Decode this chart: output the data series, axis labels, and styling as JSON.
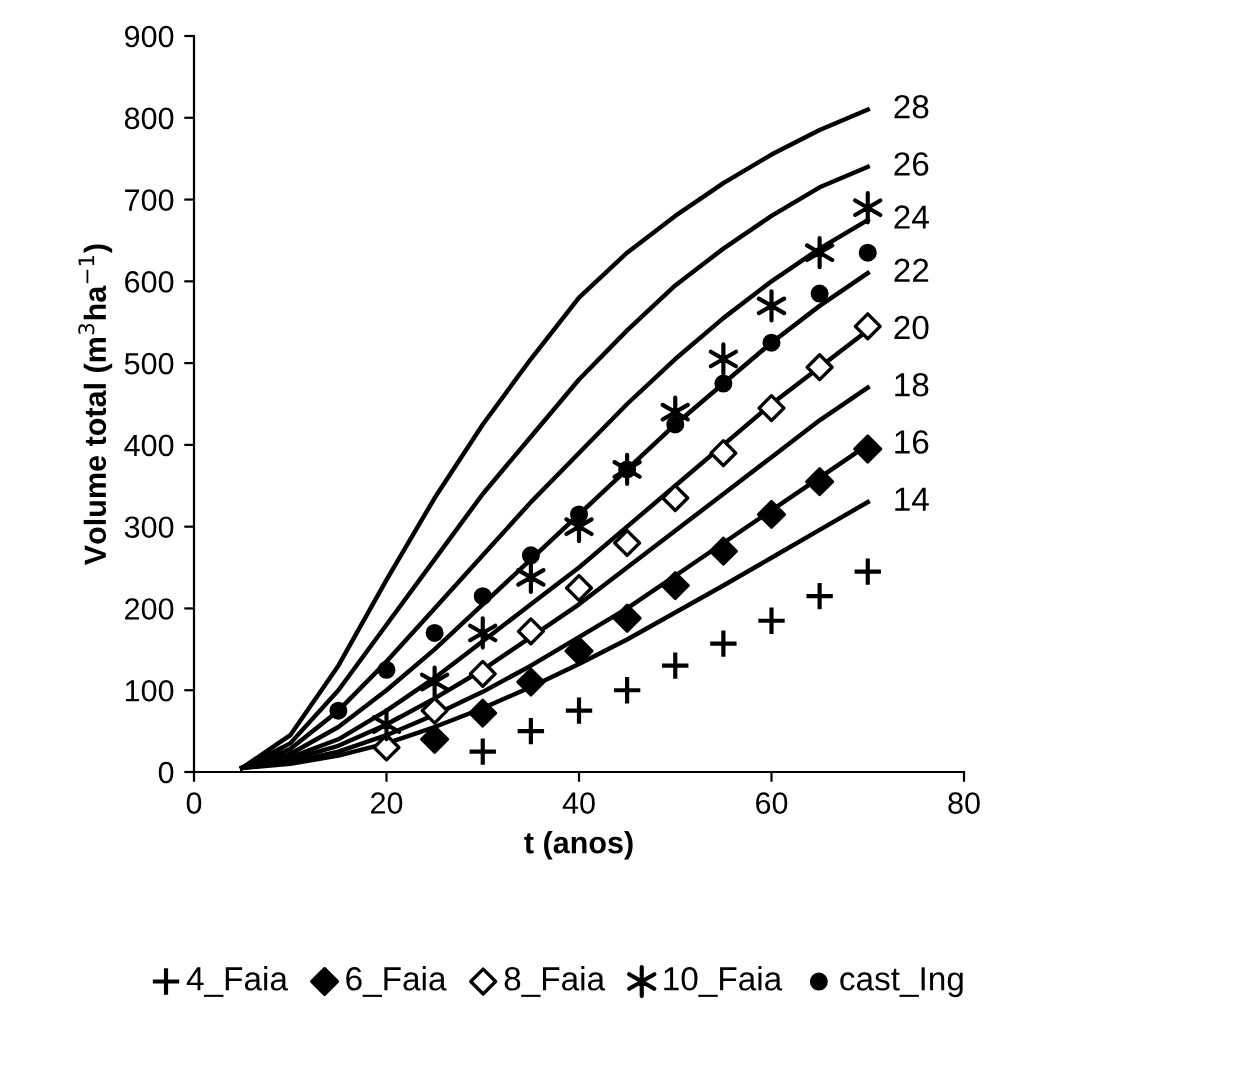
{
  "chart_data": {
    "type": "line",
    "xlabel": "t (anos)",
    "ylabel": "Volume total (m$^{3}$ha$^{−1}$)",
    "xlim": [
      0,
      80
    ],
    "ylim": [
      0,
      900
    ],
    "xticks": [
      0,
      20,
      40,
      60,
      80
    ],
    "yticks": [
      0,
      100,
      200,
      300,
      400,
      500,
      600,
      700,
      800,
      900
    ],
    "grid": false,
    "legend": "bottom",
    "x": [
      5,
      10,
      15,
      20,
      25,
      30,
      35,
      40,
      45,
      50,
      55,
      60,
      65,
      70
    ],
    "series": [
      {
        "name": "28",
        "color": "#000000",
        "values": [
          5,
          45,
          130,
          235,
          335,
          425,
          505,
          580,
          635,
          680,
          720,
          755,
          785,
          810
        ]
      },
      {
        "name": "26",
        "color": "#000000",
        "values": [
          5,
          35,
          100,
          180,
          260,
          340,
          410,
          480,
          540,
          595,
          640,
          680,
          715,
          740
        ]
      },
      {
        "name": "24",
        "color": "#000000",
        "values": [
          5,
          28,
          75,
          135,
          200,
          265,
          330,
          390,
          450,
          505,
          555,
          600,
          640,
          675
        ]
      },
      {
        "name": "22",
        "color": "#000000",
        "values": [
          5,
          22,
          55,
          100,
          150,
          205,
          260,
          315,
          370,
          425,
          475,
          525,
          570,
          610
        ]
      },
      {
        "name": "20",
        "color": "#000000",
        "values": [
          5,
          18,
          40,
          75,
          115,
          160,
          205,
          250,
          300,
          350,
          400,
          450,
          495,
          540
        ]
      },
      {
        "name": "18",
        "color": "#000000",
        "values": [
          5,
          15,
          32,
          58,
          90,
          125,
          165,
          205,
          250,
          295,
          340,
          385,
          430,
          470
        ]
      },
      {
        "name": "16",
        "color": "#000000",
        "values": [
          5,
          12,
          25,
          45,
          70,
          98,
          130,
          165,
          200,
          240,
          280,
          320,
          360,
          400
        ]
      },
      {
        "name": "14",
        "color": "#000000",
        "values": [
          5,
          10,
          20,
          35,
          55,
          78,
          104,
          132,
          162,
          195,
          228,
          262,
          296,
          330
        ]
      },
      {
        "name": "4_Faia",
        "type": "scatter",
        "marker": "plus",
        "color": "#000000",
        "x": [
          30,
          35,
          40,
          45,
          50,
          55,
          60,
          65,
          70
        ],
        "values": [
          25,
          50,
          75,
          100,
          130,
          157,
          185,
          215,
          245
        ]
      },
      {
        "name": "6_Faia",
        "type": "scatter",
        "marker": "diamond",
        "color": "#000000",
        "x": [
          25,
          30,
          35,
          40,
          45,
          50,
          55,
          60,
          65,
          70
        ],
        "values": [
          40,
          72,
          110,
          148,
          188,
          228,
          270,
          315,
          355,
          395
        ]
      },
      {
        "name": "8_Faia",
        "type": "scatter",
        "marker": "diamond_open",
        "color": "#000000",
        "x": [
          20,
          25,
          30,
          35,
          40,
          45,
          50,
          55,
          60,
          65,
          70
        ],
        "values": [
          30,
          75,
          120,
          172,
          225,
          280,
          335,
          390,
          445,
          495,
          545
        ]
      },
      {
        "name": "10_Faia",
        "type": "scatter",
        "marker": "cross",
        "color": "#000000",
        "x": [
          20,
          25,
          30,
          35,
          40,
          45,
          50,
          55,
          60,
          65,
          70
        ],
        "values": [
          58,
          110,
          170,
          238,
          300,
          370,
          440,
          505,
          570,
          635,
          690
        ]
      },
      {
        "name": "cast_Ing",
        "type": "scatter",
        "marker": "circle",
        "color": "#000000",
        "x": [
          15,
          20,
          25,
          30,
          35,
          40,
          45,
          50,
          55,
          60,
          65,
          70
        ],
        "values": [
          75,
          125,
          170,
          215,
          265,
          315,
          370,
          425,
          475,
          525,
          585,
          635
        ]
      }
    ]
  }
}
